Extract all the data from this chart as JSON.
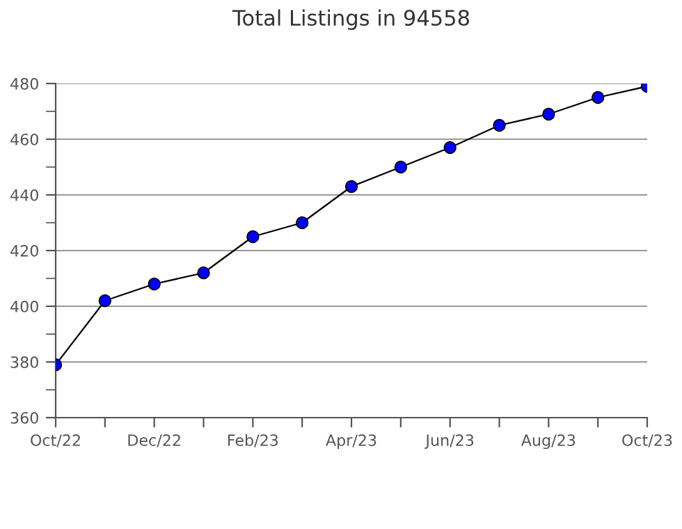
{
  "chart_data": {
    "type": "line",
    "title": "Total Listings in 94558",
    "categories": [
      "Oct/22",
      null,
      "Dec/22",
      null,
      "Feb/23",
      null,
      "Apr/23",
      null,
      "Jun/23",
      null,
      "Aug/23",
      null,
      "Oct/23"
    ],
    "series": [
      {
        "color": "#0000ff",
        "values": [
          379,
          402,
          408,
          412,
          425,
          430,
          443,
          450,
          457,
          465,
          469,
          475,
          479
        ]
      }
    ],
    "ylim": [
      360,
      480
    ],
    "yticks": [
      360,
      {
        "value": 370,
        "label": null
      },
      380,
      {
        "value": 390,
        "label": null
      },
      400,
      {
        "value": 410,
        "label": null
      },
      420,
      {
        "value": 430,
        "label": null
      },
      440,
      {
        "value": 450,
        "label": null
      },
      460,
      {
        "value": 470,
        "label": null
      },
      480
    ],
    "grid": "y",
    "marker": "circle",
    "line_style": "solid"
  }
}
